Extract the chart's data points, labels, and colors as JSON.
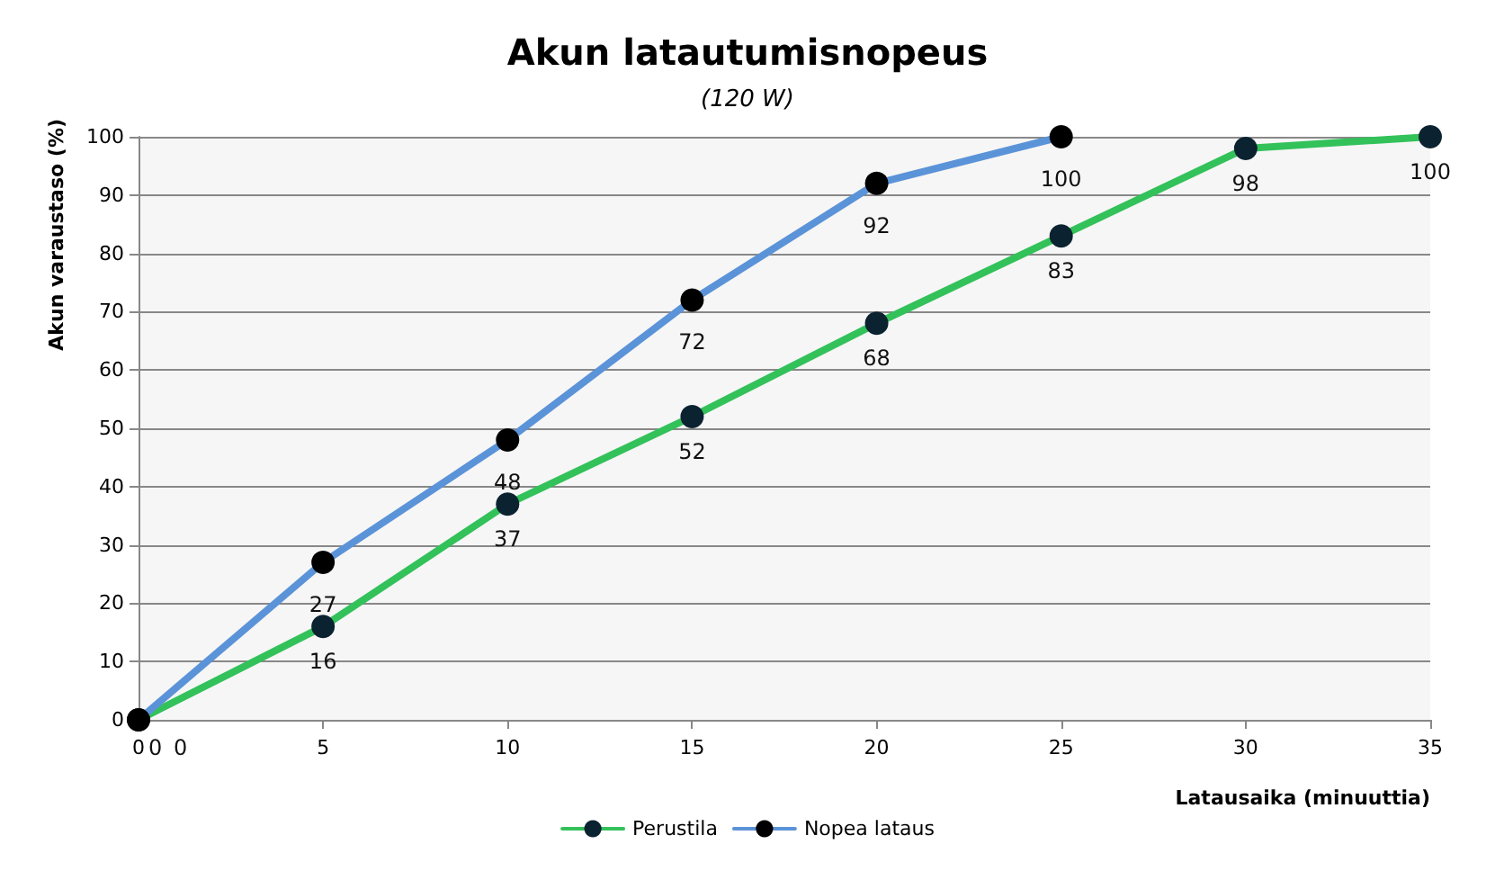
{
  "chart_data": {
    "type": "line",
    "title": "Akun latautumisnopeus",
    "subtitle": "(120 W)",
    "xlabel": "Latausaika (minuuttia)",
    "ylabel": "Akun varaustaso (%)",
    "series": [
      {
        "name": "Perustila",
        "color": "#33c15a",
        "x": [
          0,
          5,
          10,
          15,
          20,
          25,
          30,
          35
        ],
        "values": [
          0,
          16,
          37,
          52,
          68,
          83,
          98,
          100
        ]
      },
      {
        "name": "Nopea lataus",
        "color": "#5b93d8",
        "x": [
          0,
          5,
          10,
          15,
          20,
          25
        ],
        "values": [
          0,
          27,
          48,
          72,
          92,
          100
        ]
      }
    ],
    "xlim": [
      0,
      35
    ],
    "xticks": [
      0,
      5,
      10,
      15,
      20,
      25,
      30,
      35
    ],
    "ylim": [
      0,
      100
    ],
    "yticks": [
      0,
      10,
      20,
      30,
      40,
      50,
      60,
      70,
      80,
      90,
      100
    ],
    "grid": "y",
    "legend": "bottom",
    "marker": "circle",
    "line_style": "solid",
    "data_labels": true
  }
}
